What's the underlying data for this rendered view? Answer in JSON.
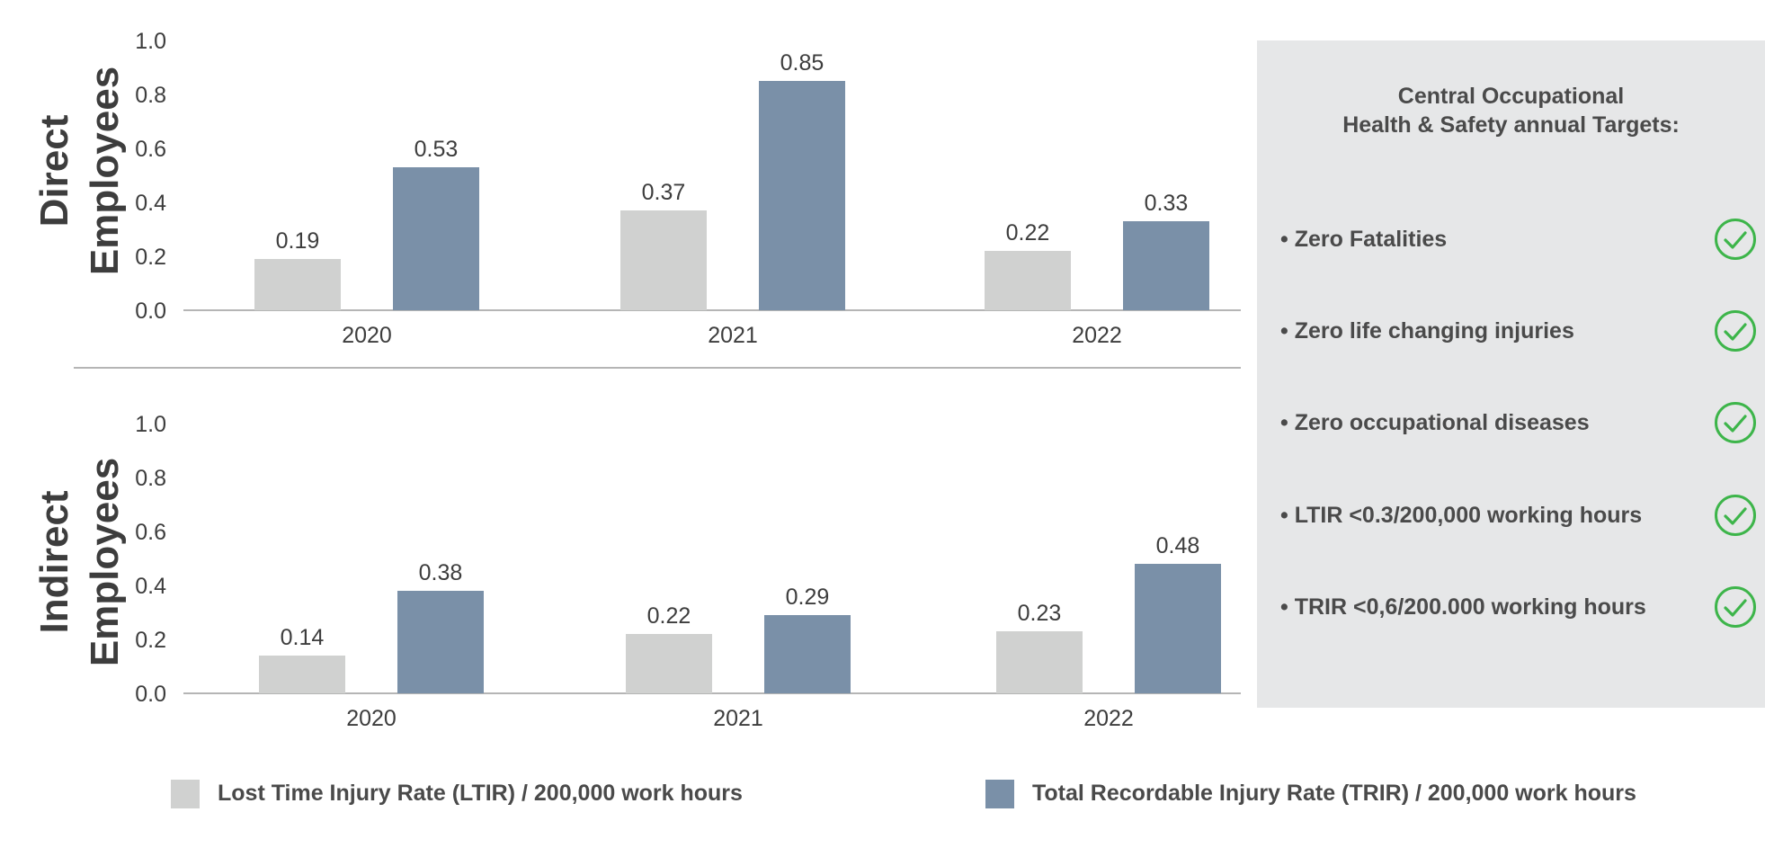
{
  "colors": {
    "ltir": "#d0d1d0",
    "trir": "#7a90a8",
    "axis": "#b5b5b5",
    "text": "#3d3d3d",
    "check": "#3db54a",
    "panel": "#e6e7e8"
  },
  "chart_data": [
    {
      "type": "bar",
      "panel_label": [
        "Direct",
        "Employees"
      ],
      "categories": [
        "2020",
        "2021",
        "2022"
      ],
      "series": [
        {
          "name": "Lost Time Injury Rate (LTIR) / 200,000 work hours",
          "values": [
            0.19,
            0.37,
            0.22
          ]
        },
        {
          "name": "Total Recordable Injury Rate (TRIR) / 200,000 work hours",
          "values": [
            0.53,
            0.85,
            0.33
          ]
        }
      ],
      "ylim": [
        0,
        1.0
      ],
      "yticks": [
        "0.0",
        "0.2",
        "0.4",
        "0.6",
        "0.8",
        "1.0"
      ],
      "grid": false
    },
    {
      "type": "bar",
      "panel_label": [
        "Indirect",
        "Employees"
      ],
      "categories": [
        "2020",
        "2021",
        "2022"
      ],
      "series": [
        {
          "name": "Lost Time Injury Rate (LTIR) / 200,000 work hours",
          "values": [
            0.14,
            0.22,
            0.23
          ]
        },
        {
          "name": "Total Recordable Injury Rate (TRIR) / 200,000 work hours",
          "values": [
            0.38,
            0.29,
            0.48
          ]
        }
      ],
      "ylim": [
        0,
        1.0
      ],
      "yticks": [
        "0.0",
        "0.2",
        "0.4",
        "0.6",
        "0.8",
        "1.0"
      ],
      "grid": false
    }
  ],
  "legend": {
    "ltir": "Lost Time Injury Rate (LTIR) / 200,000 work hours",
    "trir": "Total Recordable Injury Rate (TRIR) / 200,000 work hours"
  },
  "targets_panel": {
    "title_line1": "Central Occupational",
    "title_line2": "Health & Safety annual Targets:",
    "items": [
      {
        "text": "Zero Fatalities",
        "icon": "check-circle-icon"
      },
      {
        "text": "Zero life changing injuries",
        "icon": "check-circle-icon"
      },
      {
        "text": "Zero occupational diseases",
        "icon": "check-circle-icon"
      },
      {
        "text": "LTIR <0.3/200,000 working hours",
        "icon": "check-circle-icon"
      },
      {
        "text": "TRIR <0,6/200.000 working hours",
        "icon": "check-circle-icon"
      }
    ]
  }
}
